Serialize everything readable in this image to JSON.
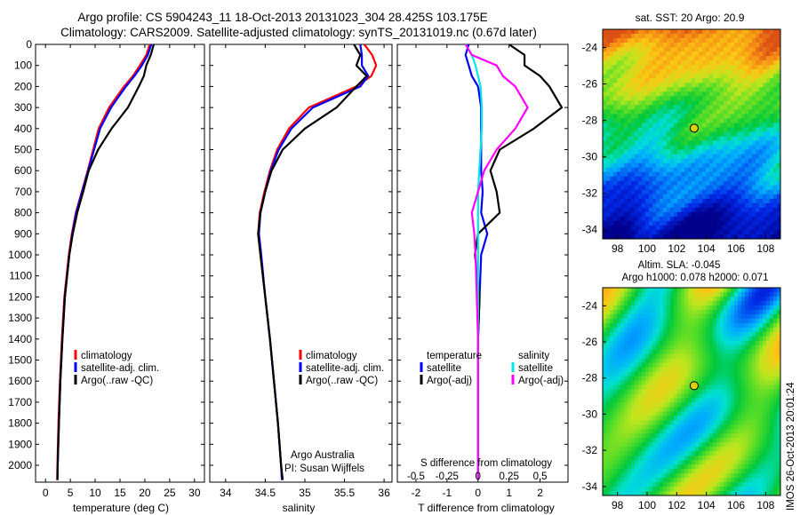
{
  "header": {
    "line1": "Argo profile: CS 5904243_11 18-Oct-2013 20131023_304 28.425S 103.175E",
    "line2": "Climatology: CARS2009. Satellite-adjusted climatology: synTS_20131019.nc (0.67d later)"
  },
  "colors": {
    "climatology": "#ff0000",
    "satellite": "#0000ff",
    "argo": "#000000",
    "satellite_s": "#00e5e5",
    "argo_s": "#ff00ff"
  },
  "chart_data": [
    {
      "type": "line",
      "panel": "temperature",
      "xlabel": "temperature (deg C)",
      "ylabel": "",
      "xlim": [
        -2,
        32
      ],
      "ylim": [
        2080,
        0
      ],
      "xticks": [
        "0",
        "5",
        "10",
        "15",
        "20",
        "25",
        "30"
      ],
      "yticks": [
        "0",
        "100",
        "200",
        "300",
        "400",
        "500",
        "600",
        "700",
        "800",
        "900",
        "1000",
        "1100",
        "1200",
        "1300",
        "1400",
        "1500",
        "1600",
        "1700",
        "1800",
        "1900",
        "2000"
      ],
      "depth": [
        0,
        50,
        100,
        150,
        200,
        300,
        400,
        500,
        600,
        700,
        800,
        900,
        1000,
        1200,
        1400,
        1600,
        1800,
        2000,
        2070
      ],
      "series": [
        {
          "name": "climatology",
          "values": [
            21.0,
            20.3,
            19.0,
            17.6,
            15.8,
            12.8,
            10.7,
            9.6,
            8.5,
            7.3,
            6.1,
            5.3,
            4.7,
            3.8,
            3.3,
            2.9,
            2.6,
            2.4,
            2.35
          ]
        },
        {
          "name": "satellite-adj. clim.",
          "values": [
            21.3,
            20.6,
            19.4,
            17.9,
            16.2,
            13.2,
            11.0,
            9.8,
            8.6,
            7.4,
            6.2,
            5.4,
            4.8,
            3.9,
            3.4,
            3.0,
            2.7,
            2.45,
            2.4
          ]
        },
        {
          "name": "Argo(..raw -QC)",
          "values": [
            21.8,
            21.2,
            20.3,
            19.8,
            18.8,
            16.6,
            13.3,
            10.6,
            8.7,
            7.6,
            6.4,
            5.5,
            4.8,
            3.9,
            3.4,
            3.0,
            2.7,
            2.45,
            2.4
          ]
        }
      ],
      "legend": "lower-right",
      "annotations": []
    },
    {
      "type": "line",
      "panel": "salinity",
      "xlabel": "salinity",
      "xlim": [
        33.8,
        36.1
      ],
      "ylim": [
        2080,
        0
      ],
      "xticks": [
        "34",
        "34.5",
        "35",
        "35.5",
        "36"
      ],
      "depth": [
        0,
        50,
        100,
        150,
        200,
        300,
        400,
        500,
        600,
        700,
        800,
        900,
        1000,
        1200,
        1400,
        1600,
        1800,
        2000,
        2070
      ],
      "series": [
        {
          "name": "climatology",
          "values": [
            35.75,
            35.85,
            35.9,
            35.84,
            35.65,
            35.05,
            34.8,
            34.65,
            34.56,
            34.49,
            34.43,
            34.41,
            34.44,
            34.5,
            34.56,
            34.61,
            34.66,
            34.7,
            34.72
          ]
        },
        {
          "name": "satellite-adj. clim.",
          "values": [
            35.7,
            35.72,
            35.72,
            35.8,
            35.7,
            35.1,
            34.83,
            34.67,
            34.57,
            34.5,
            34.44,
            34.42,
            34.45,
            34.5,
            34.56,
            34.61,
            34.66,
            34.7,
            34.71
          ]
        },
        {
          "name": "Argo(..raw -QC)",
          "values": [
            35.62,
            35.7,
            35.65,
            35.78,
            35.65,
            35.4,
            35.0,
            34.72,
            34.58,
            34.5,
            34.44,
            34.41,
            34.44,
            34.5,
            34.56,
            34.61,
            34.66,
            34.7,
            34.72
          ]
        }
      ],
      "legend": "lower-right",
      "annotations": [
        "Argo Australia",
        "PI: Susan Wijffels"
      ]
    },
    {
      "type": "line",
      "panel": "difference",
      "xlabel": "T difference from climatology",
      "x2label": "S difference from climatology",
      "xlim": [
        -2.6,
        2.9
      ],
      "ylim": [
        2080,
        0
      ],
      "xticks": [
        "-2",
        "-1",
        "0",
        "1",
        "2"
      ],
      "x2ticks": [
        "-0.5",
        "-0.25",
        "0",
        "0.25",
        "0.5"
      ],
      "x2_values": [
        -0.5,
        -0.25,
        0,
        0.25,
        0.5
      ],
      "depth": [
        0,
        50,
        100,
        150,
        200,
        300,
        400,
        500,
        600,
        700,
        800,
        900,
        1000,
        1200,
        1400,
        1600,
        1800,
        2000,
        2070
      ],
      "series": [
        {
          "name": "temperature satellite",
          "values": [
            -0.3,
            -0.4,
            -0.3,
            -0.2,
            0.0,
            0.1,
            0.1,
            0.1,
            0.1,
            0.15,
            0.1,
            0.3,
            0.1,
            0.05,
            0.0,
            0.0,
            0.0,
            0.0,
            0.0
          ]
        },
        {
          "name": "temperature Argo(-adj)",
          "values": [
            1.0,
            1.5,
            1.5,
            2.0,
            2.3,
            2.7,
            1.8,
            0.7,
            0.4,
            0.6,
            0.7,
            0.0,
            -0.1,
            0.05,
            0.0,
            0.0,
            0.0,
            0.0,
            0.0
          ]
        },
        {
          "name": "salinity satellite",
          "values": [
            -0.1,
            -0.05,
            -0.02,
            0.0,
            0.02,
            0.03,
            0.03,
            0.02,
            0.01,
            0.0,
            0.0,
            0.0,
            0.0,
            0.0,
            0.0,
            0.0,
            0.0,
            0.0,
            0.0
          ]
        },
        {
          "name": "salinity Argo(-adj)",
          "values": [
            -0.1,
            -0.05,
            0.15,
            0.2,
            0.3,
            0.4,
            0.3,
            0.15,
            0.05,
            0.0,
            -0.05,
            -0.03,
            -0.02,
            -0.01,
            0.0,
            0.0,
            0.0,
            0.0,
            0.0
          ]
        }
      ],
      "legend_headers": [
        "temperature",
        "salinity"
      ],
      "legend": "lower-center"
    },
    {
      "type": "heatmap",
      "panel": "SST map",
      "title": "sat. SST: 20 Argo: 20.9",
      "xlim": [
        97,
        109
      ],
      "ylim": [
        -34.5,
        -23
      ],
      "xticks": [
        "98",
        "100",
        "102",
        "104",
        "106",
        "108"
      ],
      "yticks": [
        "-24",
        "-26",
        "-28",
        "-30",
        "-32",
        "-34"
      ],
      "marker": {
        "lon": 103.175,
        "lat": -28.425
      }
    },
    {
      "type": "heatmap",
      "panel": "SLA map",
      "title": "Altim. SLA: -0.045",
      "subtitle": "Argo h1000: 0.078 h2000: 0.071",
      "xlim": [
        97,
        109
      ],
      "ylim": [
        -34.5,
        -23
      ],
      "xticks": [
        "98",
        "100",
        "102",
        "104",
        "106",
        "108"
      ],
      "yticks": [
        "-24",
        "-26",
        "-28",
        "-30",
        "-32",
        "-34"
      ],
      "marker": {
        "lon": 103.175,
        "lat": -28.425
      }
    }
  ],
  "legend_labels": {
    "climatology": "climatology",
    "satellite": "satellite-adj. clim.",
    "argo": "Argo(..raw -QC)",
    "sat_short": "satellite",
    "argo_adj": "Argo(-adj)"
  },
  "footer_stamp": "IMOS 26-Oct-2013 20:01:24"
}
